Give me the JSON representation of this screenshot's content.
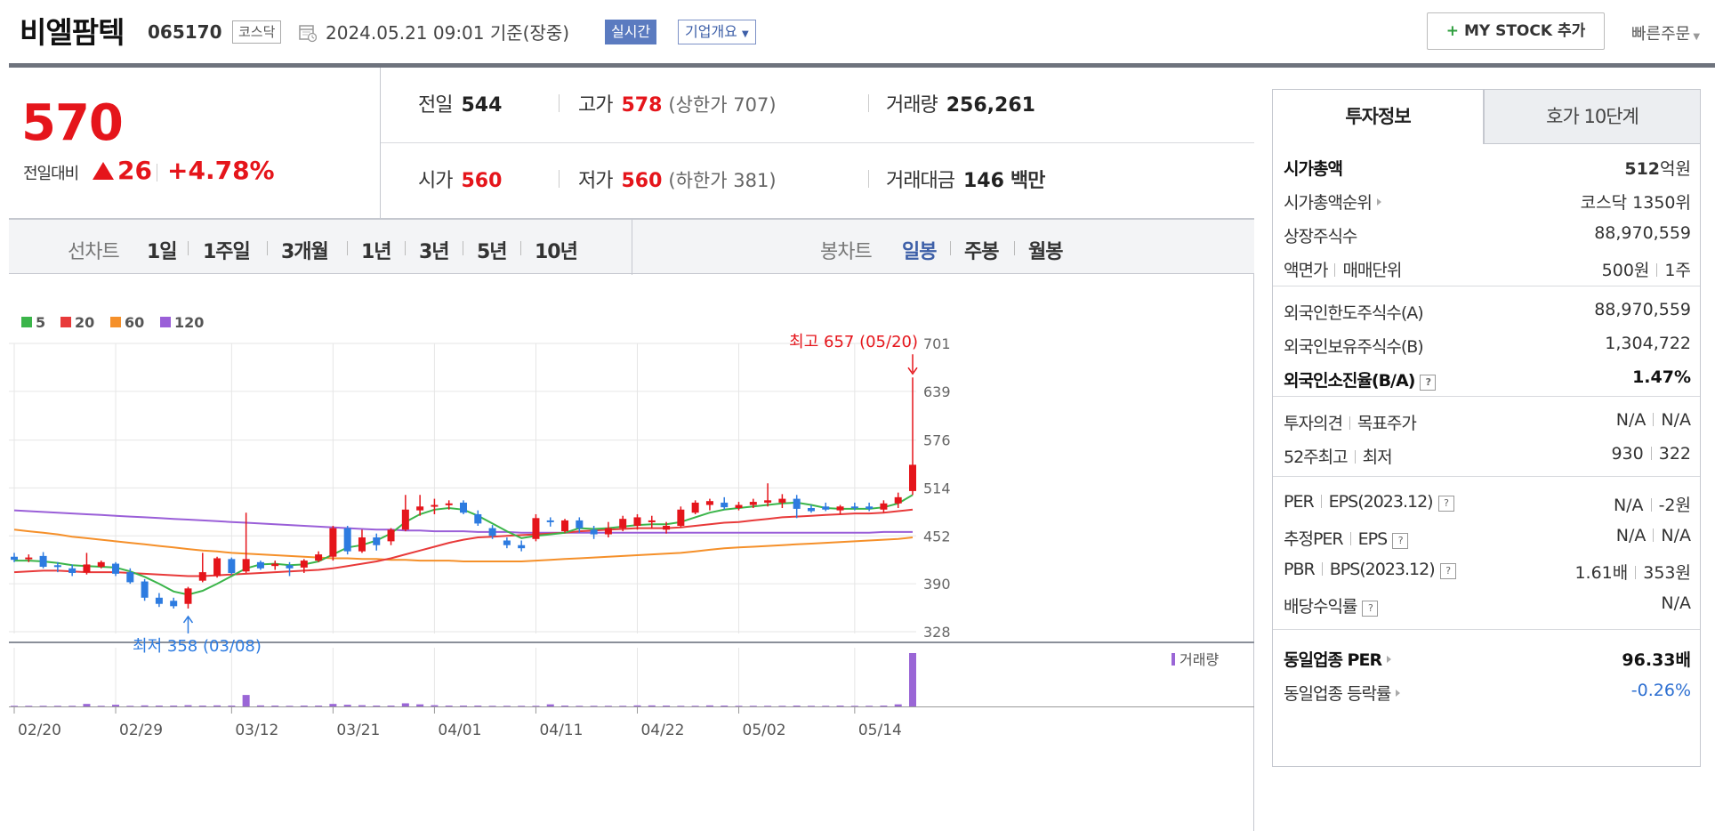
{
  "header": {
    "name": "비엘팜텍",
    "code": "065170",
    "market": "코스닥",
    "datetime": "2024.05.21 09:01",
    "basis": "기준(장중)",
    "realtime_label": "실시간",
    "overview_label": "기업개요",
    "mystock_label": "MY STOCK 추가",
    "mystock_plus": "+",
    "quick_order_label": "빠른주문"
  },
  "summary": {
    "price": "570",
    "change_label": "전일대비",
    "change": "26",
    "change_rate": "+4.78%",
    "prev_label": "전일",
    "prev": "544",
    "high_label": "고가",
    "high": "578",
    "upper_label": "(상한가",
    "upper": "707)",
    "volume_label": "거래량",
    "volume": "256,261",
    "open_label": "시가",
    "open": "560",
    "low_label": "저가",
    "low": "560",
    "lower_label": "(하한가",
    "lower": "381)",
    "amount_label": "거래대금",
    "amount": "146",
    "amount_unit": "백만"
  },
  "periods": {
    "line_label": "선차트",
    "line_items": [
      "1일",
      "1주일",
      "3개월",
      "1년",
      "3년",
      "5년",
      "10년"
    ],
    "candle_label": "봉차트",
    "candle_items": [
      "일봉",
      "주봉",
      "월봉"
    ],
    "active_candle": "일봉"
  },
  "tabs": {
    "tab1": "투자정보",
    "tab2": "호가 10단계"
  },
  "info": {
    "market_cap_label": "시가총액",
    "market_cap_num": "512",
    "market_cap_unit": "억원",
    "market_cap_rank_label": "시가총액순위",
    "market_cap_rank": "코스닥 1350위",
    "listed_shares_label": "상장주식수",
    "listed_shares": "88,970,559",
    "par_label": "액면가",
    "unit_label": "매매단위",
    "par": "500원",
    "unit": "1주",
    "foreign_limit_label": "외국인한도주식수(A)",
    "foreign_limit": "88,970,559",
    "foreign_hold_label": "외국인보유주식수(B)",
    "foreign_hold": "1,304,722",
    "foreign_ratio_label": "외국인소진율(B/A)",
    "foreign_ratio": "1.47%",
    "opinion_label": "투자의견",
    "target_label": "목표주가",
    "opinion": "N/A",
    "target": "N/A",
    "w52_high_label": "52주최고",
    "w52_low_label": "최저",
    "w52_high": "930",
    "w52_low": "322",
    "per_label": "PER",
    "eps_label": "EPS(2023.12)",
    "per": "N/A",
    "eps": "-2원",
    "est_per_label": "추정PER",
    "est_eps_label": "EPS",
    "est_per": "N/A",
    "est_eps": "N/A",
    "pbr_label": "PBR",
    "bps_label": "BPS(2023.12)",
    "pbr": "1.61배",
    "bps": "353원",
    "div_label": "배당수익률",
    "div": "N/A",
    "ind_per_label": "동일업종 PER",
    "ind_per": "96.33배",
    "ind_rate_label": "동일업종 등락률",
    "ind_rate": "-0.26%",
    "q": "?"
  },
  "chart_data": {
    "type": "candlestick",
    "legend": [
      {
        "name": "5",
        "color": "#3bb54a"
      },
      {
        "name": "20",
        "color": "#e83a3a"
      },
      {
        "name": "60",
        "color": "#f5902a"
      },
      {
        "name": "120",
        "color": "#9a5fd8"
      }
    ],
    "y_ticks": [
      701,
      639,
      576,
      514,
      452,
      390,
      328
    ],
    "ylim": [
      328,
      701
    ],
    "x_ticks": [
      "02/20",
      "02/29",
      "03/12",
      "03/21",
      "04/01",
      "04/11",
      "04/22",
      "05/02",
      "05/14"
    ],
    "x_tick_index": [
      0,
      7,
      15,
      22,
      29,
      36,
      43,
      50,
      58
    ],
    "max_label": "최고 657 (05/20)",
    "min_label": "최저 358 (03/08)",
    "max_index": 62,
    "max_value": 657,
    "min_index": 12,
    "min_value": 358,
    "volume_label": "거래량",
    "colors": {
      "up": "#e5151b",
      "down": "#2d7be0",
      "grid": "#e6e6e6"
    },
    "candles": [
      {
        "o": 425,
        "h": 430,
        "l": 418,
        "c": 421
      },
      {
        "o": 422,
        "h": 428,
        "l": 418,
        "c": 424
      },
      {
        "o": 426,
        "h": 431,
        "l": 410,
        "c": 412
      },
      {
        "o": 414,
        "h": 418,
        "l": 405,
        "c": 412
      },
      {
        "o": 410,
        "h": 415,
        "l": 400,
        "c": 404
      },
      {
        "o": 405,
        "h": 430,
        "l": 402,
        "c": 415
      },
      {
        "o": 412,
        "h": 420,
        "l": 410,
        "c": 418
      },
      {
        "o": 416,
        "h": 418,
        "l": 400,
        "c": 403
      },
      {
        "o": 405,
        "h": 410,
        "l": 390,
        "c": 392
      },
      {
        "o": 393,
        "h": 396,
        "l": 368,
        "c": 372
      },
      {
        "o": 372,
        "h": 378,
        "l": 360,
        "c": 364
      },
      {
        "o": 368,
        "h": 372,
        "l": 358,
        "c": 361
      },
      {
        "o": 364,
        "h": 386,
        "l": 358,
        "c": 384
      },
      {
        "o": 394,
        "h": 430,
        "l": 392,
        "c": 405
      },
      {
        "o": 400,
        "h": 425,
        "l": 398,
        "c": 423
      },
      {
        "o": 422,
        "h": 424,
        "l": 402,
        "c": 404
      },
      {
        "o": 406,
        "h": 482,
        "l": 404,
        "c": 422
      },
      {
        "o": 418,
        "h": 420,
        "l": 408,
        "c": 410
      },
      {
        "o": 413,
        "h": 420,
        "l": 408,
        "c": 416
      },
      {
        "o": 414,
        "h": 418,
        "l": 400,
        "c": 410
      },
      {
        "o": 411,
        "h": 422,
        "l": 404,
        "c": 420
      },
      {
        "o": 420,
        "h": 432,
        "l": 418,
        "c": 428
      },
      {
        "o": 425,
        "h": 465,
        "l": 420,
        "c": 462
      },
      {
        "o": 462,
        "h": 465,
        "l": 428,
        "c": 432
      },
      {
        "o": 432,
        "h": 460,
        "l": 430,
        "c": 450
      },
      {
        "o": 450,
        "h": 455,
        "l": 433,
        "c": 440
      },
      {
        "o": 445,
        "h": 462,
        "l": 440,
        "c": 460
      },
      {
        "o": 460,
        "h": 505,
        "l": 458,
        "c": 486
      },
      {
        "o": 485,
        "h": 505,
        "l": 478,
        "c": 490
      },
      {
        "o": 490,
        "h": 500,
        "l": 480,
        "c": 492
      },
      {
        "o": 492,
        "h": 498,
        "l": 486,
        "c": 494
      },
      {
        "o": 495,
        "h": 498,
        "l": 480,
        "c": 482
      },
      {
        "o": 480,
        "h": 485,
        "l": 465,
        "c": 468
      },
      {
        "o": 462,
        "h": 466,
        "l": 448,
        "c": 452
      },
      {
        "o": 446,
        "h": 450,
        "l": 436,
        "c": 440
      },
      {
        "o": 440,
        "h": 446,
        "l": 432,
        "c": 436
      },
      {
        "o": 448,
        "h": 480,
        "l": 445,
        "c": 475
      },
      {
        "o": 472,
        "h": 476,
        "l": 464,
        "c": 470
      },
      {
        "o": 458,
        "h": 474,
        "l": 456,
        "c": 472
      },
      {
        "o": 472,
        "h": 476,
        "l": 456,
        "c": 462
      },
      {
        "o": 460,
        "h": 465,
        "l": 448,
        "c": 454
      },
      {
        "o": 454,
        "h": 470,
        "l": 450,
        "c": 462
      },
      {
        "o": 462,
        "h": 478,
        "l": 458,
        "c": 474
      },
      {
        "o": 465,
        "h": 480,
        "l": 460,
        "c": 476
      },
      {
        "o": 470,
        "h": 478,
        "l": 462,
        "c": 472
      },
      {
        "o": 460,
        "h": 470,
        "l": 455,
        "c": 465
      },
      {
        "o": 465,
        "h": 490,
        "l": 463,
        "c": 486
      },
      {
        "o": 482,
        "h": 498,
        "l": 480,
        "c": 495
      },
      {
        "o": 492,
        "h": 500,
        "l": 485,
        "c": 497
      },
      {
        "o": 495,
        "h": 502,
        "l": 486,
        "c": 489
      },
      {
        "o": 488,
        "h": 496,
        "l": 485,
        "c": 492
      },
      {
        "o": 492,
        "h": 500,
        "l": 488,
        "c": 496
      },
      {
        "o": 495,
        "h": 520,
        "l": 490,
        "c": 498
      },
      {
        "o": 495,
        "h": 506,
        "l": 488,
        "c": 500
      },
      {
        "o": 500,
        "h": 505,
        "l": 475,
        "c": 487
      },
      {
        "o": 488,
        "h": 492,
        "l": 482,
        "c": 484
      },
      {
        "o": 490,
        "h": 495,
        "l": 484,
        "c": 486
      },
      {
        "o": 485,
        "h": 492,
        "l": 480,
        "c": 490
      },
      {
        "o": 490,
        "h": 495,
        "l": 485,
        "c": 488
      },
      {
        "o": 490,
        "h": 495,
        "l": 484,
        "c": 487
      },
      {
        "o": 486,
        "h": 498,
        "l": 482,
        "c": 494
      },
      {
        "o": 494,
        "h": 508,
        "l": 488,
        "c": 502
      },
      {
        "o": 510,
        "h": 657,
        "l": 505,
        "c": 544
      }
    ],
    "ma": {
      "5": [
        420,
        420,
        419,
        417,
        414,
        413,
        412,
        411,
        406,
        399,
        390,
        380,
        376,
        381,
        390,
        400,
        410,
        415,
        416,
        414,
        415,
        419,
        428,
        437,
        440,
        446,
        455,
        470,
        480,
        486,
        488,
        486,
        478,
        468,
        458,
        449,
        452,
        454,
        456,
        462,
        461,
        462,
        464,
        466,
        467,
        467,
        470,
        476,
        482,
        486,
        488,
        490,
        492,
        494,
        495,
        492,
        488,
        487,
        487,
        487,
        489,
        494,
        505
      ],
      "20": [
        405,
        406,
        407,
        407,
        406,
        405,
        405,
        405,
        404,
        403,
        402,
        401,
        400,
        400,
        401,
        402,
        403,
        404,
        405,
        406,
        407,
        408,
        410,
        413,
        416,
        419,
        423,
        428,
        433,
        438,
        443,
        447,
        450,
        451,
        452,
        453,
        454,
        455,
        456,
        458,
        459,
        460,
        461,
        462,
        462,
        462,
        463,
        465,
        467,
        469,
        470,
        472,
        474,
        476,
        477,
        478,
        479,
        480,
        481,
        481,
        482,
        484,
        486
      ],
      "60": [
        460,
        458,
        456,
        454,
        451,
        449,
        447,
        445,
        443,
        441,
        439,
        437,
        435,
        433,
        432,
        430,
        429,
        428,
        427,
        426,
        425,
        424,
        423,
        423,
        422,
        422,
        421,
        421,
        420,
        420,
        420,
        419,
        419,
        419,
        419,
        419,
        420,
        421,
        422,
        423,
        424,
        425,
        426,
        427,
        428,
        429,
        430,
        432,
        434,
        436,
        437,
        438,
        439,
        440,
        441,
        442,
        443,
        444,
        445,
        446,
        447,
        448,
        450
      ],
      "120": [
        485,
        484,
        483,
        482,
        481,
        480,
        479,
        478,
        477,
        476,
        475,
        474,
        473,
        472,
        471,
        470,
        469,
        468,
        467,
        466,
        465,
        464,
        463,
        462,
        461,
        460,
        460,
        459,
        459,
        458,
        458,
        458,
        457,
        457,
        457,
        456,
        456,
        456,
        456,
        456,
        456,
        456,
        456,
        456,
        456,
        456,
        456,
        456,
        456,
        456,
        456,
        456,
        456,
        456,
        456,
        456,
        456,
        456,
        456,
        456,
        457,
        457,
        457
      ]
    },
    "volume": [
      3,
      3,
      3,
      3,
      3,
      12,
      3,
      8,
      3,
      5,
      4,
      4,
      6,
      4,
      5,
      4,
      55,
      5,
      4,
      3,
      4,
      4,
      12,
      8,
      6,
      4,
      4,
      15,
      10,
      6,
      4,
      4,
      4,
      3,
      3,
      3,
      3,
      10,
      4,
      3,
      3,
      3,
      3,
      5,
      5,
      4,
      3,
      3,
      5,
      4,
      3,
      3,
      3,
      3,
      4,
      3,
      3,
      4,
      3,
      3,
      4,
      10,
      256
    ]
  }
}
